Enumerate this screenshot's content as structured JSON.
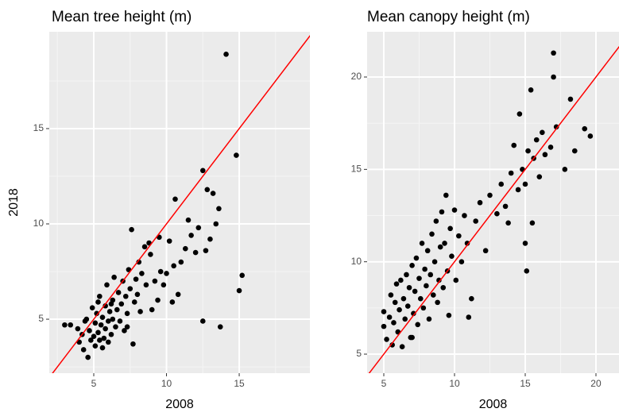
{
  "chart_data": [
    {
      "type": "scatter",
      "title": "Mean tree height (m)",
      "x_label": "2008",
      "y_label": "2018",
      "xlim": [
        1.94,
        19.86
      ],
      "ylim": [
        2.17,
        20.08
      ],
      "xticks": [
        5,
        10,
        15
      ],
      "yticks": [
        5,
        10,
        15
      ],
      "grid": true,
      "color": "#000000",
      "identity_line_color": "#ff0000",
      "x": [
        3.0,
        3.4,
        3.9,
        4.0,
        4.2,
        4.3,
        4.5,
        4.6,
        4.7,
        4.8,
        4.9,
        5.0,
        5.1,
        5.1,
        5.2,
        5.3,
        5.4,
        5.4,
        5.5,
        5.6,
        5.6,
        5.7,
        5.8,
        5.8,
        5.9,
        6.0,
        6.0,
        6.1,
        6.2,
        6.3,
        6.3,
        6.4,
        6.5,
        6.6,
        6.7,
        6.8,
        6.9,
        7.0,
        7.1,
        7.2,
        7.3,
        7.4,
        7.5,
        7.6,
        7.7,
        7.8,
        7.9,
        8.0,
        8.1,
        8.2,
        8.3,
        8.5,
        8.6,
        8.8,
        9.0,
        9.2,
        9.4,
        9.6,
        9.8,
        10.0,
        10.2,
        10.4,
        10.5,
        10.6,
        10.8,
        11.0,
        11.3,
        11.5,
        11.7,
        12.0,
        12.2,
        12.5,
        12.5,
        12.7,
        12.8,
        13.0,
        13.2,
        13.4,
        13.6,
        13.7,
        14.1,
        14.8,
        15.0,
        15.2,
        9.5,
        8.9,
        6.2,
        5.3,
        4.4,
        7.3
      ],
      "y": [
        4.7,
        4.7,
        4.5,
        3.8,
        4.2,
        3.4,
        5.0,
        3.0,
        4.4,
        3.9,
        5.6,
        4.1,
        3.6,
        4.8,
        5.3,
        4.3,
        3.9,
        6.2,
        4.7,
        5.1,
        3.5,
        4.0,
        5.7,
        4.5,
        6.8,
        4.9,
        3.8,
        5.4,
        4.2,
        6.0,
        5.0,
        7.2,
        4.6,
        5.5,
        6.4,
        4.9,
        5.8,
        7.0,
        4.4,
        6.2,
        5.3,
        7.6,
        6.6,
        9.7,
        3.7,
        5.9,
        7.1,
        6.3,
        8.0,
        5.4,
        7.4,
        8.8,
        6.8,
        9.0,
        5.5,
        7.0,
        6.0,
        7.5,
        6.8,
        7.4,
        9.1,
        5.9,
        7.8,
        11.3,
        6.3,
        8.0,
        8.7,
        10.2,
        9.4,
        8.5,
        9.8,
        12.8,
        4.9,
        8.6,
        11.8,
        9.2,
        11.6,
        10.0,
        10.8,
        4.6,
        18.9,
        13.6,
        6.5,
        7.3,
        9.3,
        8.4,
        5.8,
        5.9,
        4.9,
        4.6
      ]
    },
    {
      "type": "scatter",
      "title": "Mean canopy height (m)",
      "x_label": "2008",
      "xlim": [
        3.82,
        21.63
      ],
      "ylim": [
        3.97,
        22.45
      ],
      "xticks": [
        5,
        10,
        15,
        20
      ],
      "yticks": [
        5,
        10,
        15,
        20
      ],
      "grid": true,
      "color": "#000000",
      "identity_line_color": "#ff0000",
      "x": [
        5.0,
        5.0,
        5.2,
        5.4,
        5.5,
        5.6,
        5.7,
        5.8,
        5.9,
        6.0,
        6.1,
        6.2,
        6.3,
        6.4,
        6.5,
        6.6,
        6.7,
        6.8,
        6.9,
        7.0,
        7.1,
        7.2,
        7.3,
        7.4,
        7.5,
        7.6,
        7.7,
        7.8,
        7.9,
        8.0,
        8.1,
        8.2,
        8.3,
        8.4,
        8.5,
        8.6,
        8.7,
        8.8,
        8.9,
        9.0,
        9.1,
        9.2,
        9.3,
        9.4,
        9.5,
        9.6,
        9.7,
        9.8,
        10.0,
        10.1,
        10.3,
        10.5,
        10.7,
        10.9,
        11.2,
        11.5,
        11.8,
        12.2,
        12.5,
        13.0,
        13.3,
        13.6,
        13.8,
        14.0,
        14.2,
        14.5,
        14.6,
        14.8,
        15.0,
        15.1,
        15.2,
        15.4,
        15.5,
        15.6,
        15.8,
        16.0,
        16.2,
        16.4,
        16.8,
        17.0,
        17.0,
        17.2,
        17.8,
        18.2,
        18.5,
        19.2,
        19.6,
        15.0,
        11.0,
        7.0
      ],
      "y": [
        6.5,
        7.3,
        5.8,
        7.0,
        8.2,
        5.5,
        6.7,
        7.8,
        8.8,
        6.2,
        7.4,
        9.0,
        5.4,
        8.0,
        6.9,
        9.3,
        7.6,
        8.6,
        5.9,
        9.8,
        7.2,
        8.4,
        10.2,
        6.6,
        9.1,
        8.0,
        11.0,
        7.5,
        9.6,
        8.7,
        10.6,
        6.9,
        9.3,
        11.5,
        8.2,
        10.0,
        12.2,
        7.8,
        9.0,
        10.8,
        12.7,
        8.6,
        11.0,
        13.6,
        9.5,
        7.1,
        11.8,
        10.3,
        12.8,
        9.0,
        11.4,
        10.0,
        12.5,
        11.0,
        8.0,
        12.2,
        13.2,
        10.6,
        13.6,
        12.6,
        14.2,
        13.0,
        12.1,
        14.8,
        16.3,
        13.9,
        18.0,
        15.0,
        14.2,
        9.5,
        16.0,
        19.3,
        12.1,
        15.6,
        16.6,
        14.6,
        17.0,
        15.8,
        16.2,
        21.3,
        20.0,
        17.3,
        15.0,
        18.8,
        16.0,
        17.2,
        16.8,
        11.0,
        7.0,
        5.9
      ]
    }
  ]
}
